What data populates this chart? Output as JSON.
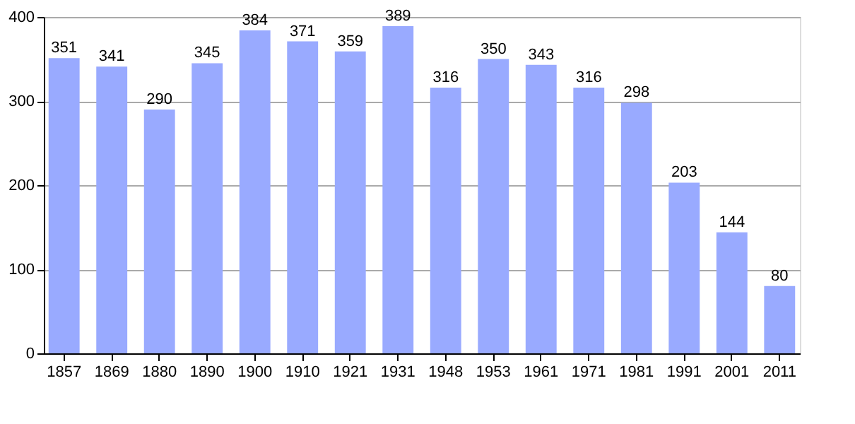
{
  "chart_data": {
    "type": "bar",
    "categories": [
      "1857",
      "1869",
      "1880",
      "1890",
      "1900",
      "1910",
      "1921",
      "1931",
      "1948",
      "1953",
      "1961",
      "1971",
      "1981",
      "1991",
      "2001",
      "2011"
    ],
    "values": [
      351,
      341,
      290,
      345,
      384,
      371,
      359,
      389,
      316,
      350,
      343,
      316,
      298,
      203,
      144,
      80
    ],
    "color": "#99aaff",
    "ylim": [
      0,
      400
    ],
    "yticks": [
      0,
      100,
      200,
      300,
      400
    ],
    "grid": "y",
    "data_labels": true
  }
}
